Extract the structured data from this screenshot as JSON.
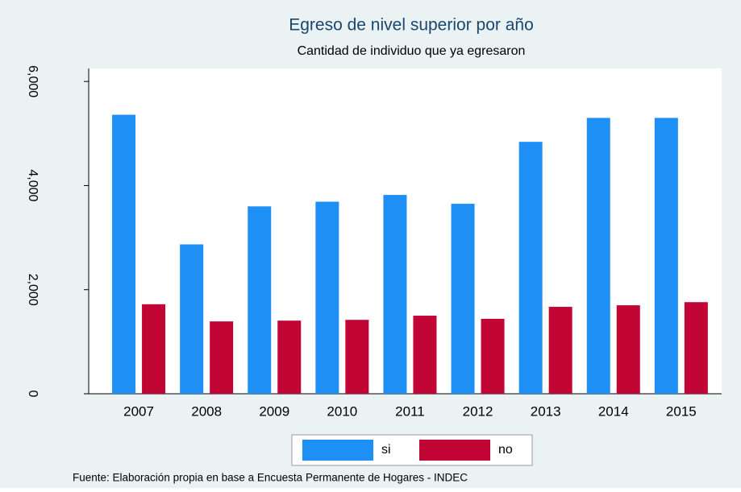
{
  "chart_data": {
    "type": "bar",
    "title": "Egreso de nivel superior por año",
    "subtitle": "Cantidad de individuo que ya egresaron",
    "note": "Fuente: Elaboración propia en base a Encuesta Permanente de Hogares - INDEC",
    "categories": [
      "2007",
      "2008",
      "2009",
      "2010",
      "2011",
      "2012",
      "2013",
      "2014",
      "2015"
    ],
    "series": [
      {
        "name": "si",
        "color": "#1e8ff5",
        "values": [
          5360,
          2870,
          3600,
          3690,
          3820,
          3650,
          4840,
          5300,
          5300
        ]
      },
      {
        "name": "no",
        "color": "#c10534",
        "values": [
          1720,
          1390,
          1405,
          1420,
          1500,
          1440,
          1670,
          1700,
          1760
        ]
      }
    ],
    "ylim": [
      0,
      6250
    ],
    "yticks": [
      0,
      {
        "value": 2000,
        "label": "2,000"
      },
      {
        "value": 4000,
        "label": "4,000"
      },
      {
        "value": 6000,
        "label": "6,000"
      }
    ],
    "legend": "bottom"
  }
}
